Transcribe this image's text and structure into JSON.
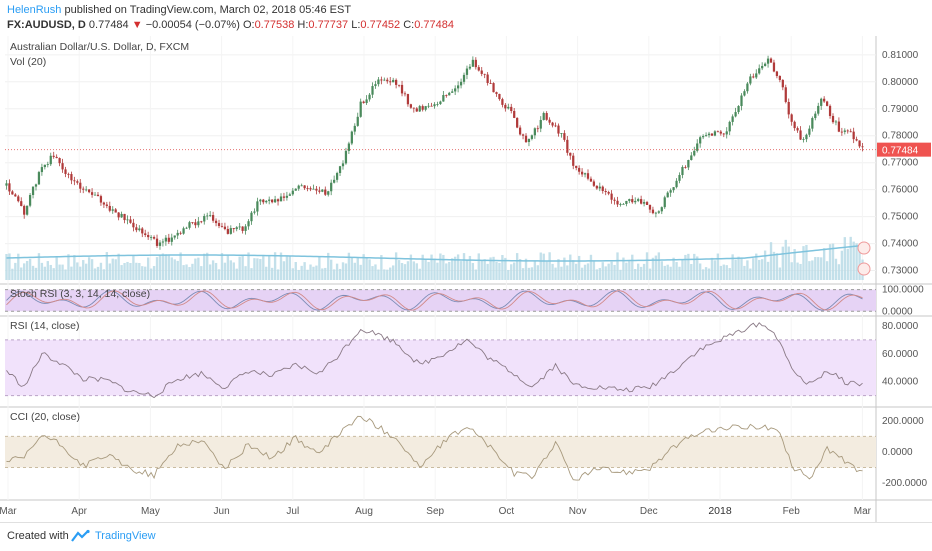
{
  "header": {
    "author": "HelenRush",
    "published_text": "published on TradingView.com, March 02, 2018 05:46 EST",
    "symbol": "FX:AUDUSD, D",
    "last": "0.77484",
    "change_arrow": "▼",
    "change": "−0.00054 (−0.07%)",
    "open_label": "O:",
    "open": "0.77538",
    "high_label": "H:",
    "high": "0.77737",
    "low_label": "L:",
    "low": "0.77452",
    "close_label": "C:",
    "close": "0.77484"
  },
  "footer": {
    "created_with": "Created with",
    "brand": "TradingView"
  },
  "chart_data": [
    {
      "type": "candlestick",
      "title": "Australian Dollar/U.S. Dollar, D, FXCM",
      "subtitle": "Vol (20)",
      "x_labels": [
        "Mar",
        "Apr",
        "May",
        "Jun",
        "Jul",
        "Aug",
        "Sep",
        "Oct",
        "Nov",
        "Dec",
        "2018",
        "Feb",
        "Mar"
      ],
      "y_ticks": [
        "0.81000",
        "0.80000",
        "0.79000",
        "0.78000",
        "0.77000",
        "0.76000",
        "0.75000",
        "0.74000",
        "0.73000"
      ],
      "ylim": [
        0.7265,
        0.8155
      ],
      "last_price_label": "0.77484",
      "anchors": [
        [
          0,
          0.7615
        ],
        [
          6,
          0.7515
        ],
        [
          12,
          0.7685
        ],
        [
          16,
          0.7725
        ],
        [
          22,
          0.7635
        ],
        [
          30,
          0.7575
        ],
        [
          38,
          0.7505
        ],
        [
          45,
          0.7455
        ],
        [
          52,
          0.7395
        ],
        [
          60,
          0.7455
        ],
        [
          68,
          0.7505
        ],
        [
          74,
          0.7445
        ],
        [
          80,
          0.7455
        ],
        [
          86,
          0.7565
        ],
        [
          92,
          0.7555
        ],
        [
          100,
          0.7615
        ],
        [
          108,
          0.7585
        ],
        [
          114,
          0.7705
        ],
        [
          120,
          0.7915
        ],
        [
          126,
          0.8005
        ],
        [
          132,
          0.7995
        ],
        [
          138,
          0.7895
        ],
        [
          146,
          0.7925
        ],
        [
          152,
          0.7975
        ],
        [
          158,
          0.8075
        ],
        [
          164,
          0.7985
        ],
        [
          172,
          0.7865
        ],
        [
          176,
          0.7765
        ],
        [
          182,
          0.7875
        ],
        [
          188,
          0.7805
        ],
        [
          192,
          0.7685
        ],
        [
          198,
          0.7635
        ],
        [
          206,
          0.7555
        ],
        [
          214,
          0.7565
        ],
        [
          220,
          0.7505
        ],
        [
          228,
          0.7655
        ],
        [
          236,
          0.7805
        ],
        [
          244,
          0.7815
        ],
        [
          252,
          0.8015
        ],
        [
          258,
          0.8085
        ],
        [
          262,
          0.8015
        ],
        [
          266,
          0.7845
        ],
        [
          270,
          0.7775
        ],
        [
          276,
          0.7935
        ],
        [
          282,
          0.7825
        ],
        [
          286,
          0.7815
        ],
        [
          290,
          0.7748
        ]
      ],
      "volume_level": 0.55
    },
    {
      "type": "line",
      "title": "Stoch RSI (3, 3, 14, 14, close)",
      "y_ticks": [
        "100.0000",
        "0.0000"
      ],
      "ylim": [
        -8,
        112
      ],
      "band": [
        20,
        80
      ]
    },
    {
      "type": "line",
      "title": "RSI (14, close)",
      "y_ticks": [
        "80.0000",
        "60.0000",
        "40.0000"
      ],
      "ylim": [
        24,
        85
      ],
      "band": [
        30,
        70
      ],
      "anchors": [
        [
          0,
          48
        ],
        [
          6,
          36
        ],
        [
          12,
          60
        ],
        [
          18,
          54
        ],
        [
          26,
          42
        ],
        [
          34,
          41
        ],
        [
          42,
          33
        ],
        [
          50,
          30
        ],
        [
          58,
          42
        ],
        [
          66,
          46
        ],
        [
          74,
          36
        ],
        [
          82,
          48
        ],
        [
          90,
          44
        ],
        [
          98,
          52
        ],
        [
          106,
          46
        ],
        [
          112,
          58
        ],
        [
          120,
          78
        ],
        [
          126,
          74
        ],
        [
          132,
          68
        ],
        [
          140,
          52
        ],
        [
          148,
          60
        ],
        [
          156,
          70
        ],
        [
          164,
          56
        ],
        [
          172,
          46
        ],
        [
          178,
          36
        ],
        [
          186,
          52
        ],
        [
          192,
          38
        ],
        [
          200,
          36
        ],
        [
          210,
          34
        ],
        [
          218,
          36
        ],
        [
          226,
          48
        ],
        [
          234,
          62
        ],
        [
          242,
          70
        ],
        [
          250,
          78
        ],
        [
          256,
          82
        ],
        [
          262,
          70
        ],
        [
          266,
          48
        ],
        [
          272,
          38
        ],
        [
          278,
          48
        ],
        [
          284,
          40
        ],
        [
          290,
          38
        ]
      ]
    },
    {
      "type": "line",
      "title": "CCI (20, close)",
      "y_ticks": [
        "200.0000",
        "0.0000",
        "-200.0000"
      ],
      "ylim": [
        -290,
        270
      ],
      "band": [
        -100,
        100
      ],
      "anchors": [
        [
          0,
          -60
        ],
        [
          6,
          -40
        ],
        [
          12,
          110
        ],
        [
          18,
          50
        ],
        [
          26,
          -90
        ],
        [
          34,
          -20
        ],
        [
          42,
          -110
        ],
        [
          50,
          -150
        ],
        [
          58,
          40
        ],
        [
          66,
          80
        ],
        [
          74,
          -110
        ],
        [
          82,
          50
        ],
        [
          90,
          -40
        ],
        [
          98,
          90
        ],
        [
          106,
          -20
        ],
        [
          112,
          110
        ],
        [
          120,
          230
        ],
        [
          126,
          160
        ],
        [
          132,
          90
        ],
        [
          140,
          -100
        ],
        [
          148,
          60
        ],
        [
          156,
          170
        ],
        [
          164,
          30
        ],
        [
          172,
          -140
        ],
        [
          178,
          -160
        ],
        [
          186,
          60
        ],
        [
          192,
          -180
        ],
        [
          200,
          -110
        ],
        [
          210,
          -130
        ],
        [
          218,
          -100
        ],
        [
          226,
          30
        ],
        [
          234,
          120
        ],
        [
          242,
          150
        ],
        [
          250,
          160
        ],
        [
          256,
          170
        ],
        [
          262,
          120
        ],
        [
          266,
          -90
        ],
        [
          272,
          -170
        ],
        [
          278,
          20
        ],
        [
          284,
          -60
        ],
        [
          290,
          -130
        ]
      ]
    }
  ],
  "colors": {
    "up": "#4a8a5c",
    "down": "#b03a3a",
    "volume": "#b9dbe6",
    "volume_ma": "#7ec3dd",
    "stoch_band": "#e6d3f5",
    "rsi_band": "#f1e2fb",
    "cci_band": "#f3ece0",
    "line": "#8a7a86",
    "price_line": "#e57373",
    "last_label_bg": "#ef5350"
  }
}
